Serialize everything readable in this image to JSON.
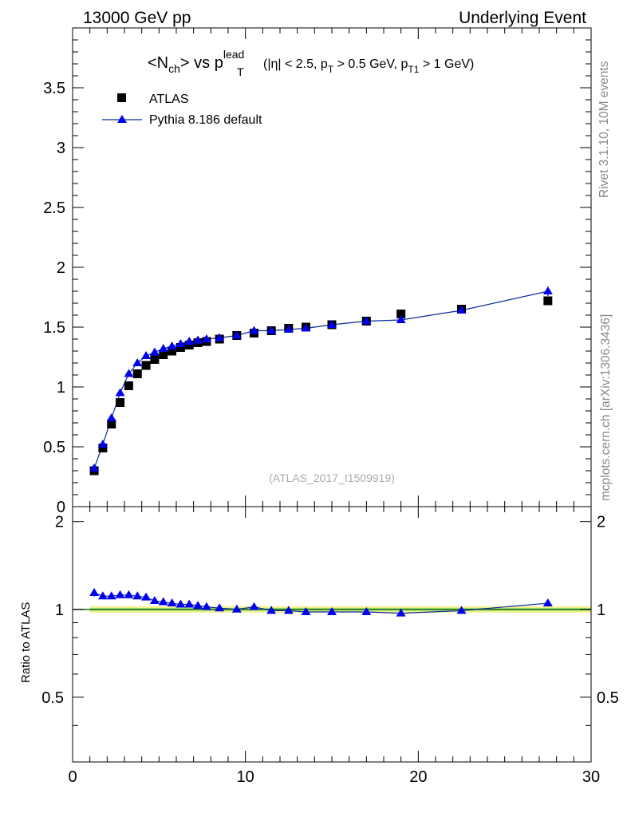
{
  "header": {
    "energy_label": "13000 GeV pp",
    "event_label": "Underlying Event"
  },
  "title": {
    "main": "<N",
    "main_sub": "ch",
    "main_rest": "> vs p",
    "pt_sup": "lead",
    "pt_sub": "T",
    "cuts_a": "(|η| < 2.5, p",
    "cuts_sub1": "T",
    "cuts_b": " > 0.5 GeV, p",
    "cuts_sub2": "T1",
    "cuts_c": " > 1 GeV)"
  },
  "side_labels": {
    "rivet": "Rivet 3.1.10,  10M events",
    "mcplots": "mcplots.cern.ch [arXiv:1306.3436]"
  },
  "watermark": "(ATLAS_2017_I1509919)",
  "legend": {
    "data_label": "ATLAS",
    "mc_label": "Pythia 8.186 default"
  },
  "ratio_ylabel": "Ratio to ATLAS",
  "colors": {
    "data": "#000000",
    "mc": "#0000ee",
    "mc_line": "#0a2a9a",
    "band_outer": "#f2f28a",
    "band_inner": "#a8e070",
    "reference_line": "#1a6e1a"
  },
  "chart_data": {
    "type": "scatter",
    "x": [
      1.25,
      1.75,
      2.25,
      2.75,
      3.25,
      3.75,
      4.25,
      4.75,
      5.25,
      5.75,
      6.25,
      6.75,
      7.25,
      7.75,
      8.5,
      9.5,
      10.5,
      11.5,
      12.5,
      13.5,
      15,
      17,
      19,
      22.5,
      27.5
    ],
    "series": [
      {
        "name": "ATLAS",
        "marker": "square",
        "values": [
          0.3,
          0.49,
          0.69,
          0.87,
          1.01,
          1.11,
          1.18,
          1.23,
          1.27,
          1.3,
          1.33,
          1.35,
          1.37,
          1.38,
          1.4,
          1.43,
          1.45,
          1.47,
          1.49,
          1.5,
          1.52,
          1.55,
          1.61,
          1.65,
          1.72
        ],
        "ratio_band_rel_error": 0.025
      },
      {
        "name": "Pythia 8.186 default",
        "marker": "triangle",
        "values": [
          0.32,
          0.52,
          0.74,
          0.95,
          1.11,
          1.2,
          1.26,
          1.29,
          1.32,
          1.34,
          1.36,
          1.38,
          1.39,
          1.4,
          1.41,
          1.43,
          1.47,
          1.47,
          1.48,
          1.49,
          1.52,
          1.55,
          1.56,
          1.64,
          1.8
        ],
        "ratio": [
          1.14,
          1.11,
          1.11,
          1.12,
          1.12,
          1.11,
          1.1,
          1.07,
          1.06,
          1.05,
          1.04,
          1.04,
          1.03,
          1.02,
          1.01,
          1.0,
          1.02,
          0.99,
          0.99,
          0.98,
          0.98,
          0.98,
          0.97,
          0.99,
          1.05
        ],
        "errors": [
          0.01,
          0.01,
          0.01,
          0.01,
          0.01,
          0.01,
          0.01,
          0.01,
          0.01,
          0.01,
          0.01,
          0.01,
          0.01,
          0.01,
          0.01,
          0.01,
          0.01,
          0.01,
          0.01,
          0.01,
          0.01,
          0.01,
          0.015,
          0.02,
          0.04
        ]
      }
    ],
    "xlim": [
      0,
      30
    ],
    "ylim": [
      0,
      4.0
    ],
    "ratio_ylim": [
      0.3,
      2.25
    ],
    "x_ticks": [
      0,
      10,
      20,
      30
    ],
    "y_ticks": [
      0,
      0.5,
      1,
      1.5,
      2,
      2.5,
      3,
      3.5
    ],
    "y_tick_labels": [
      "0",
      "0.5",
      "1",
      "1.5",
      "2",
      "2.5",
      "3",
      "3.5"
    ],
    "ratio_ticks": [
      0.5,
      1,
      2
    ],
    "ratio_tick_labels": [
      "0.5",
      "1",
      "2"
    ],
    "x_tick_labels": [
      "0",
      "10",
      "20",
      "30"
    ],
    "legend_position": "top-left",
    "grid": false
  }
}
